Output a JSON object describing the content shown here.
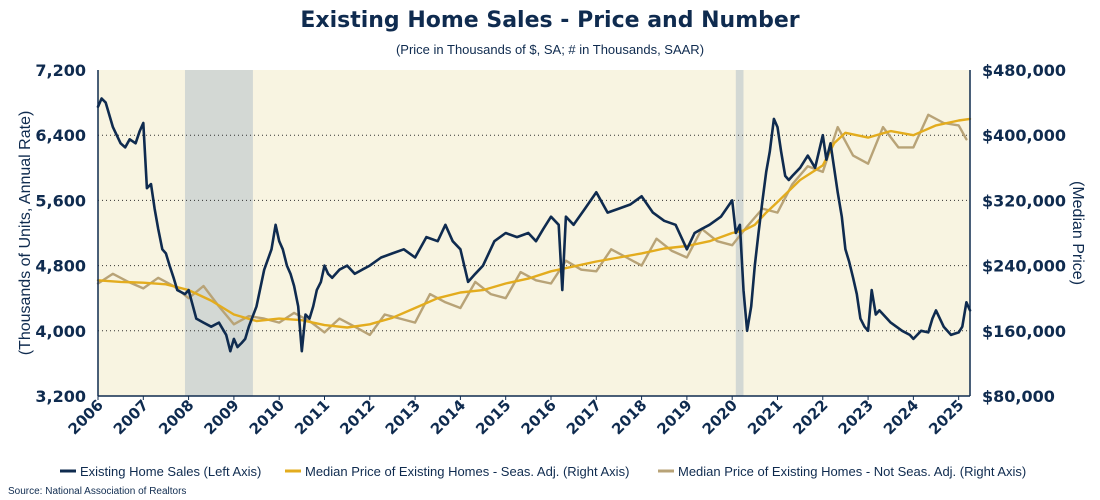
{
  "chart_data": {
    "type": "line",
    "title": "Existing Home Sales - Price and Number",
    "subtitle": "(Price in Thousands of $, SA; # in Thousands, SAAR)",
    "source": "Source: National Association of Realtors",
    "left_axis": {
      "label": "(Thousands of Units, Annual Rate)",
      "range": [
        3200,
        7200
      ],
      "ticks": [
        "3,200",
        "4,000",
        "4,800",
        "5,600",
        "6,400",
        "7,200"
      ]
    },
    "right_axis": {
      "label": "(Median Price)",
      "range": [
        80000,
        480000
      ],
      "ticks": [
        "$80,000",
        "$160,000",
        "$240,000",
        "$320,000",
        "$400,000",
        "$480,000"
      ]
    },
    "x_axis": {
      "range": [
        2006.0,
        2025.25
      ],
      "tick_labels": [
        "2006",
        "2007",
        "2008",
        "2009",
        "2010",
        "2011",
        "2012",
        "2013",
        "2014",
        "2015",
        "2016",
        "2017",
        "2018",
        "2019",
        "2020",
        "2021",
        "2022",
        "2023",
        "2024",
        "2025"
      ]
    },
    "grid": "horizontal dotted",
    "recessions": [
      {
        "start": 2007.92,
        "end": 2009.42
      },
      {
        "start": 2020.08,
        "end": 2020.25
      }
    ],
    "legend_position": "bottom",
    "series": [
      {
        "name": "Existing Home Sales (Left Axis)",
        "axis": "left",
        "color": "#0f2b4f",
        "x": [
          2006.0,
          2006.08,
          2006.17,
          2006.33,
          2006.5,
          2006.6,
          2006.7,
          2006.83,
          2006.92,
          2007.0,
          2007.08,
          2007.17,
          2007.25,
          2007.33,
          2007.42,
          2007.5,
          2007.58,
          2007.67,
          2007.75,
          2007.92,
          2008.0,
          2008.17,
          2008.33,
          2008.5,
          2008.67,
          2008.83,
          2008.92,
          2009.0,
          2009.08,
          2009.17,
          2009.25,
          2009.33,
          2009.5,
          2009.67,
          2009.83,
          2009.92,
          2010.0,
          2010.08,
          2010.17,
          2010.25,
          2010.33,
          2010.42,
          2010.5,
          2010.58,
          2010.67,
          2010.75,
          2010.83,
          2010.92,
          2011.0,
          2011.08,
          2011.17,
          2011.33,
          2011.5,
          2011.67,
          2011.83,
          2012.0,
          2012.25,
          2012.5,
          2012.75,
          2013.0,
          2013.25,
          2013.5,
          2013.67,
          2013.83,
          2014.0,
          2014.17,
          2014.33,
          2014.5,
          2014.75,
          2015.0,
          2015.25,
          2015.5,
          2015.67,
          2015.83,
          2016.0,
          2016.17,
          2016.25,
          2016.33,
          2016.5,
          2016.75,
          2017.0,
          2017.25,
          2017.5,
          2017.75,
          2018.0,
          2018.25,
          2018.5,
          2018.75,
          2019.0,
          2019.17,
          2019.33,
          2019.5,
          2019.75,
          2020.0,
          2020.08,
          2020.17,
          2020.25,
          2020.33,
          2020.42,
          2020.5,
          2020.58,
          2020.67,
          2020.75,
          2020.83,
          2020.92,
          2021.0,
          2021.08,
          2021.17,
          2021.25,
          2021.33,
          2021.5,
          2021.67,
          2021.83,
          2022.0,
          2022.08,
          2022.17,
          2022.25,
          2022.33,
          2022.42,
          2022.5,
          2022.58,
          2022.67,
          2022.75,
          2022.83,
          2022.92,
          2023.0,
          2023.08,
          2023.17,
          2023.25,
          2023.5,
          2023.75,
          2023.92,
          2024.0,
          2024.17,
          2024.33,
          2024.42,
          2024.5,
          2024.67,
          2024.83,
          2025.0,
          2025.08,
          2025.17,
          2025.25
        ],
        "values": [
          6750,
          6850,
          6800,
          6500,
          6300,
          6250,
          6350,
          6300,
          6450,
          6550,
          5750,
          5800,
          5500,
          5250,
          5000,
          4950,
          4800,
          4650,
          4500,
          4450,
          4500,
          4150,
          4100,
          4050,
          4100,
          3950,
          3750,
          3900,
          3800,
          3850,
          3900,
          4050,
          4300,
          4750,
          5000,
          5300,
          5100,
          5000,
          4800,
          4700,
          4550,
          4300,
          3750,
          4200,
          4150,
          4300,
          4500,
          4600,
          4800,
          4700,
          4650,
          4750,
          4800,
          4700,
          4750,
          4800,
          4900,
          4950,
          5000,
          4900,
          5150,
          5100,
          5300,
          5100,
          5000,
          4600,
          4700,
          4800,
          5100,
          5200,
          5150,
          5200,
          5100,
          5250,
          5400,
          5300,
          4500,
          5400,
          5300,
          5500,
          5700,
          5450,
          5500,
          5550,
          5650,
          5450,
          5350,
          5300,
          5000,
          5200,
          5250,
          5300,
          5400,
          5600,
          5200,
          5300,
          4500,
          4000,
          4300,
          4800,
          5200,
          5600,
          5950,
          6200,
          6600,
          6500,
          6200,
          5900,
          5850,
          5900,
          6000,
          6150,
          6000,
          6400,
          6100,
          6300,
          6000,
          5700,
          5400,
          5000,
          4850,
          4650,
          4450,
          4150,
          4050,
          4000,
          4500,
          4200,
          4250,
          4100,
          4000,
          3950,
          3900,
          4000,
          3980,
          4150,
          4250,
          4050,
          3950,
          3980,
          4050,
          4350,
          4250
        ]
      },
      {
        "name": "Median Price of Existing Homes - Seas. Adj. (Right Axis)",
        "axis": "right",
        "color": "#e3ac1e",
        "x": [
          2006.0,
          2006.5,
          2007.0,
          2007.5,
          2008.0,
          2008.5,
          2009.0,
          2009.5,
          2010.0,
          2010.5,
          2011.0,
          2011.5,
          2012.0,
          2012.5,
          2013.0,
          2013.5,
          2014.0,
          2014.5,
          2015.0,
          2015.5,
          2016.0,
          2016.5,
          2017.0,
          2017.5,
          2018.0,
          2018.5,
          2019.0,
          2019.5,
          2020.0,
          2020.25,
          2020.5,
          2020.75,
          2021.0,
          2021.5,
          2022.0,
          2022.25,
          2022.5,
          2023.0,
          2023.5,
          2024.0,
          2024.5,
          2025.0,
          2025.25
        ],
        "values": [
          222000,
          220000,
          219000,
          217000,
          210000,
          197000,
          180000,
          172000,
          175000,
          173000,
          167000,
          164000,
          168000,
          176000,
          188000,
          200000,
          207000,
          210000,
          218000,
          224000,
          233000,
          239000,
          245000,
          250000,
          255000,
          261000,
          264000,
          270000,
          280000,
          283000,
          290000,
          305000,
          318000,
          345000,
          363000,
          390000,
          403000,
          397000,
          405000,
          400000,
          412000,
          418000,
          420000
        ]
      },
      {
        "name": "Median Price of Existing Homes - Not Seas. Adj. (Right Axis)",
        "axis": "right",
        "color": "#b8a377",
        "x": [
          2006.0,
          2006.33,
          2006.67,
          2007.0,
          2007.33,
          2007.67,
          2008.0,
          2008.33,
          2008.67,
          2009.0,
          2009.33,
          2009.67,
          2010.0,
          2010.33,
          2010.67,
          2011.0,
          2011.33,
          2011.67,
          2012.0,
          2012.33,
          2012.67,
          2013.0,
          2013.33,
          2013.67,
          2014.0,
          2014.33,
          2014.67,
          2015.0,
          2015.33,
          2015.67,
          2016.0,
          2016.33,
          2016.67,
          2017.0,
          2017.33,
          2017.67,
          2018.0,
          2018.33,
          2018.67,
          2019.0,
          2019.33,
          2019.67,
          2020.0,
          2020.33,
          2020.67,
          2021.0,
          2021.33,
          2021.67,
          2022.0,
          2022.33,
          2022.67,
          2023.0,
          2023.33,
          2023.67,
          2024.0,
          2024.33,
          2024.67,
          2025.0,
          2025.17
        ],
        "values": [
          218000,
          230000,
          220000,
          212000,
          225000,
          215000,
          200000,
          215000,
          190000,
          168000,
          178000,
          175000,
          170000,
          182000,
          172000,
          158000,
          175000,
          165000,
          155000,
          180000,
          175000,
          170000,
          205000,
          195000,
          188000,
          220000,
          205000,
          200000,
          232000,
          222000,
          218000,
          246000,
          235000,
          233000,
          260000,
          250000,
          240000,
          273000,
          258000,
          250000,
          285000,
          270000,
          265000,
          288000,
          310000,
          305000,
          340000,
          362000,
          355000,
          410000,
          375000,
          365000,
          410000,
          385000,
          385000,
          425000,
          415000,
          412000,
          395000
        ]
      }
    ]
  }
}
